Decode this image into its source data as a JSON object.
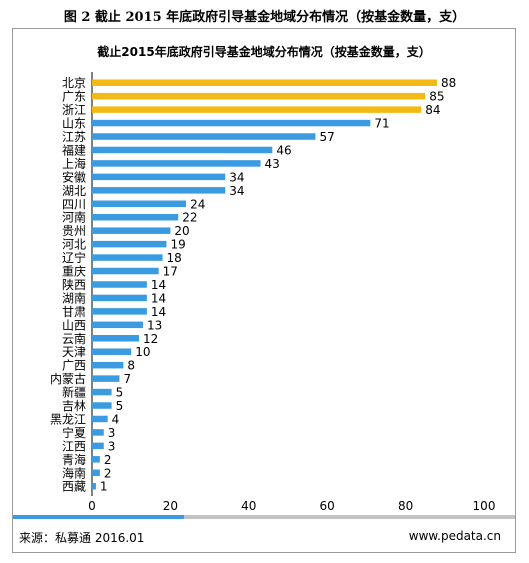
{
  "caption": "图 2 截止 2015 年底政府引导基金地域分布情况（按基金数量，支）",
  "source": "来源：私募通 2016.01",
  "website": "www.pedata.cn",
  "colors": {
    "highlight": "#f5b915",
    "bar": "#3a9be0",
    "grid_rule": "#c3c3c3"
  },
  "chart_data": {
    "type": "bar",
    "orientation": "horizontal",
    "title": "截止2015年底政府引导基金地域分布情况（按基金数量，支）",
    "categories": [
      "北京",
      "广东",
      "浙江",
      "山东",
      "江苏",
      "福建",
      "上海",
      "安徽",
      "湖北",
      "四川",
      "河南",
      "贵州",
      "河北",
      "辽宁",
      "重庆",
      "陕西",
      "湖南",
      "甘肃",
      "山西",
      "云南",
      "天津",
      "广西",
      "内蒙古",
      "新疆",
      "吉林",
      "黑龙江",
      "宁夏",
      "江西",
      "青海",
      "海南",
      "西藏"
    ],
    "values": [
      88,
      85,
      84,
      71,
      57,
      46,
      43,
      34,
      34,
      24,
      22,
      20,
      19,
      18,
      17,
      14,
      14,
      14,
      13,
      12,
      10,
      8,
      7,
      5,
      5,
      4,
      3,
      3,
      2,
      2,
      1
    ],
    "highlighted_categories": [
      "北京",
      "广东",
      "浙江"
    ],
    "xlim": [
      0,
      100
    ],
    "xticks": [
      0,
      20,
      40,
      60,
      80,
      100
    ],
    "grid": false,
    "legend": "none"
  }
}
